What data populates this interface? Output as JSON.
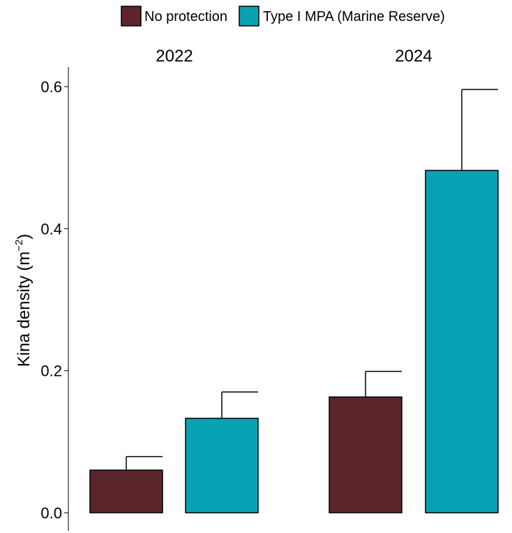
{
  "chart_data": {
    "type": "bar",
    "title": "",
    "xlabel": "",
    "ylabel": "Kina density (m",
    "ylabel_unit_exp": "−2",
    "ylabel_close": ")",
    "ylim": [
      0,
      0.62
    ],
    "yticks": [
      {
        "value": 0.0,
        "label": "0.0"
      },
      {
        "value": 0.2,
        "label": "0.2"
      },
      {
        "value": 0.4,
        "label": "0.4"
      },
      {
        "value": 0.6,
        "label": "0.6"
      }
    ],
    "grid": false,
    "legend_position": "top",
    "series": [
      {
        "name": "No protection",
        "color": "#5a262b"
      },
      {
        "name": "Type I MPA (Marine Reserve)",
        "color": "#07a2b3"
      }
    ],
    "facets": [
      {
        "label": "2022",
        "bars": [
          {
            "series": "No protection",
            "value": 0.06,
            "error": 0.019
          },
          {
            "series": "Type I MPA (Marine Reserve)",
            "value": 0.133,
            "error": 0.037
          }
        ]
      },
      {
        "label": "2024",
        "bars": [
          {
            "series": "No protection",
            "value": 0.163,
            "error": 0.036
          },
          {
            "series": "Type I MPA (Marine Reserve)",
            "value": 0.482,
            "error": 0.114
          }
        ]
      }
    ]
  }
}
